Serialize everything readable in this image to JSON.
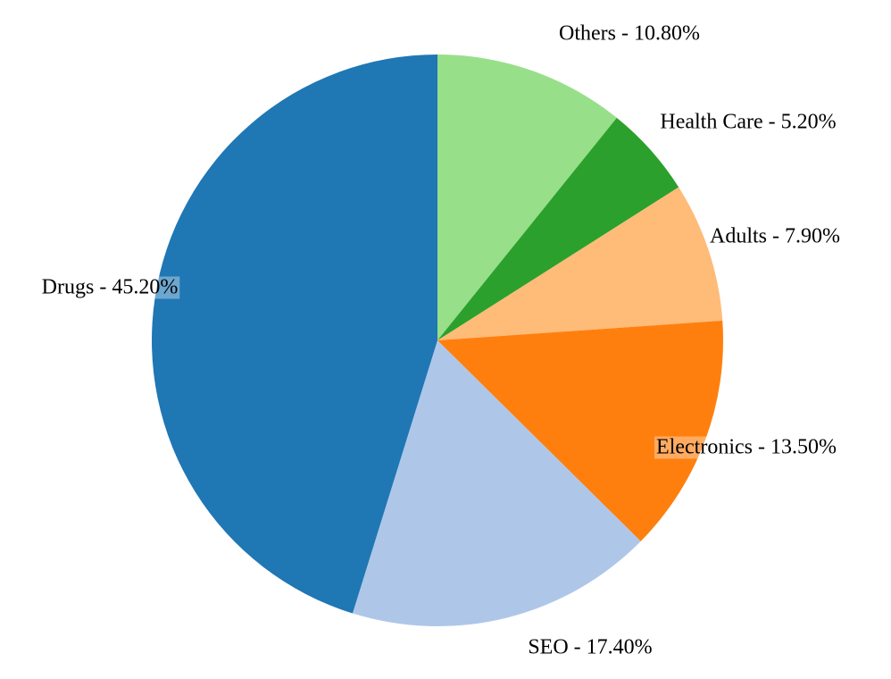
{
  "chart_data": {
    "type": "pie",
    "start_angle_deg": 0,
    "direction": "clockwise",
    "slices": [
      {
        "label": "Others - 10.80%",
        "category": "Others",
        "value": 10.8,
        "color": "#98df8a"
      },
      {
        "label": "Health Care - 5.20%",
        "category": "Health Care",
        "value": 5.2,
        "color": "#2ca02c"
      },
      {
        "label": "Adults - 7.90%",
        "category": "Adults",
        "value": 7.9,
        "color": "#ffbb78"
      },
      {
        "label": "Electronics - 13.50%",
        "category": "Electronics",
        "value": 13.5,
        "color": "#ff7f0e"
      },
      {
        "label": "SEO - 17.40%",
        "category": "SEO",
        "value": 17.4,
        "color": "#aec7e8"
      },
      {
        "label": "Drugs - 45.20%",
        "category": "Drugs",
        "value": 45.2,
        "color": "#1f77b4"
      }
    ]
  }
}
